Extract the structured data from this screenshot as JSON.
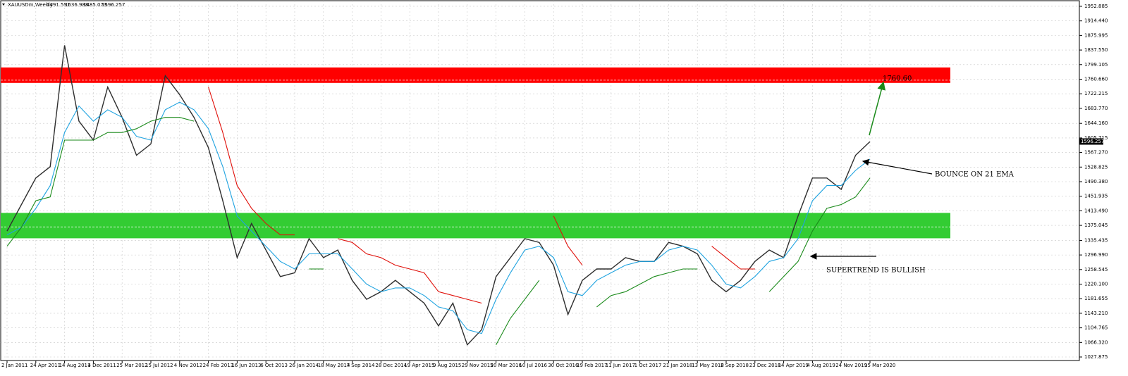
{
  "chart_data": {
    "type": "line",
    "symbol": "XAUUSDm,Weekly",
    "ohlc": [
      1491.591,
      1636.988,
      1485.073,
      1596.257
    ],
    "categories": [
      "2 Jan 2011",
      null,
      "24 Apr 2011",
      null,
      "14 Aug 2011",
      null,
      "4 Dec 2011",
      null,
      "25 Mar 2012",
      null,
      "15 Jul 2012",
      null,
      "4 Nov 2012",
      null,
      "24 Feb 2013",
      null,
      "16 Jun 2013",
      null,
      "6 Oct 2013",
      null,
      "26 Jan 2014",
      null,
      "18 May 2014",
      null,
      "7 Sep 2014",
      null,
      "28 Dec 2014",
      null,
      "19 Apr 2015",
      null,
      "9 Aug 2015",
      null,
      "29 Nov 2015",
      null,
      "20 Mar 2016",
      null,
      "10 Jul 2016",
      null,
      "30 Oct 2016",
      null,
      "19 Feb 2017",
      null,
      "11 Jun 2017",
      null,
      "1 Oct 2017",
      null,
      "21 Jan 2018",
      null,
      "13 May 2018",
      null,
      "2 Sep 2018",
      null,
      "23 Dec 2018",
      null,
      "14 Apr 2019",
      null,
      "4 Aug 2019",
      null,
      "24 Nov 2019",
      null,
      "15 Mar 2020"
    ],
    "series": [
      {
        "color": "#2e2e2e",
        "values": [
          1360,
          1430,
          1500,
          1530,
          1850,
          1650,
          1600,
          1740,
          1660,
          1560,
          1590,
          1770,
          1720,
          1660,
          1580,
          1440,
          1290,
          1380,
          1310,
          1240,
          1250,
          1340,
          1290,
          1310,
          1230,
          1180,
          1200,
          1230,
          1200,
          1170,
          1110,
          1170,
          1060,
          1100,
          1240,
          1290,
          1340,
          1330,
          1270,
          1140,
          1230,
          1260,
          1260,
          1290,
          1280,
          1280,
          1330,
          1320,
          1300,
          1230,
          1200,
          1230,
          1280,
          1310,
          1290,
          1400,
          1500,
          1500,
          1470,
          1560,
          1596
        ]
      },
      {
        "color": "#1fa3e0",
        "values": [
          1350,
          1370,
          1420,
          1480,
          1620,
          1690,
          1650,
          1680,
          1660,
          1610,
          1600,
          1680,
          1700,
          1680,
          1630,
          1530,
          1400,
          1360,
          1320,
          1280,
          1260,
          1300,
          1300,
          1300,
          1260,
          1220,
          1200,
          1210,
          1210,
          1190,
          1160,
          1150,
          1100,
          1090,
          1180,
          1250,
          1310,
          1320,
          1290,
          1200,
          1190,
          1230,
          1250,
          1270,
          1280,
          1280,
          1310,
          1320,
          1310,
          1270,
          1220,
          1210,
          1240,
          1280,
          1290,
          1340,
          1440,
          1480,
          1480,
          1520,
          1550
        ]
      },
      {
        "color": "#e0100a",
        "values": [
          null,
          null,
          null,
          null,
          null,
          null,
          null,
          null,
          null,
          null,
          null,
          null,
          null,
          null,
          1740,
          1620,
          1480,
          1420,
          1380,
          1350,
          1350,
          null,
          null,
          1340,
          1330,
          1300,
          1290,
          1270,
          1260,
          1250,
          1200,
          1190,
          1180,
          1170,
          null,
          null,
          null,
          null,
          1400,
          1320,
          1270,
          null,
          null,
          null,
          null,
          null,
          null,
          null,
          null,
          1320,
          1290,
          1260,
          1260,
          null,
          null,
          null,
          null,
          null,
          null,
          null,
          null
        ]
      },
      {
        "color": "#1a8a1a",
        "values": [
          1320,
          1370,
          1440,
          1450,
          1600,
          1600,
          1600,
          1620,
          1620,
          1630,
          1650,
          1660,
          1660,
          1650,
          null,
          null,
          null,
          null,
          null,
          null,
          null,
          1260,
          1260,
          null,
          null,
          null,
          null,
          null,
          null,
          null,
          null,
          null,
          null,
          null,
          1060,
          1130,
          1180,
          1230,
          null,
          null,
          null,
          1160,
          1190,
          1200,
          1220,
          1240,
          1250,
          1260,
          1260,
          null,
          null,
          null,
          null,
          1200,
          1240,
          1280,
          1360,
          1420,
          1430,
          1450,
          1500
        ]
      }
    ],
    "zones": [
      {
        "from": 1750.8,
        "to": 1791.7,
        "color": "#ff0000"
      },
      {
        "from": 1341,
        "to": 1408,
        "color": "#33cc33"
      }
    ],
    "levels": [
      1758,
      1371
    ],
    "ylim": [
      1018.6,
      1967.7
    ],
    "yticks": [
      1952.885,
      {
        "value": 1914.44,
        "label": "1914.440"
      },
      1875.995,
      {
        "value": 1837.55,
        "label": "1837.550"
      },
      1799.105,
      {
        "value": 1760.66,
        "label": "1760.660"
      },
      1722.215,
      {
        "value": 1683.77,
        "label": "1683.770"
      },
      {
        "value": 1644.16,
        "label": "1644.160"
      },
      1605.715,
      {
        "value": 1567.27,
        "label": "1567.270"
      },
      1528.825,
      {
        "value": 1490.38,
        "label": "1490.380"
      },
      1451.935,
      {
        "value": 1413.49,
        "label": "1413.490"
      },
      1375.045,
      1335.435,
      {
        "value": 1296.99,
        "label": "1296.990"
      },
      1258.545,
      {
        "value": 1220.1,
        "label": "1220.100"
      },
      1181.655,
      {
        "value": 1143.21,
        "label": "1143.210"
      },
      1104.765,
      {
        "value": 1066.32,
        "label": "1066.320"
      },
      1027.875
    ],
    "grid": true,
    "annotations": [
      "1760.60",
      "BOUNCE ON 21 EMA",
      "SUPERTREND IS BULLISH"
    ]
  }
}
